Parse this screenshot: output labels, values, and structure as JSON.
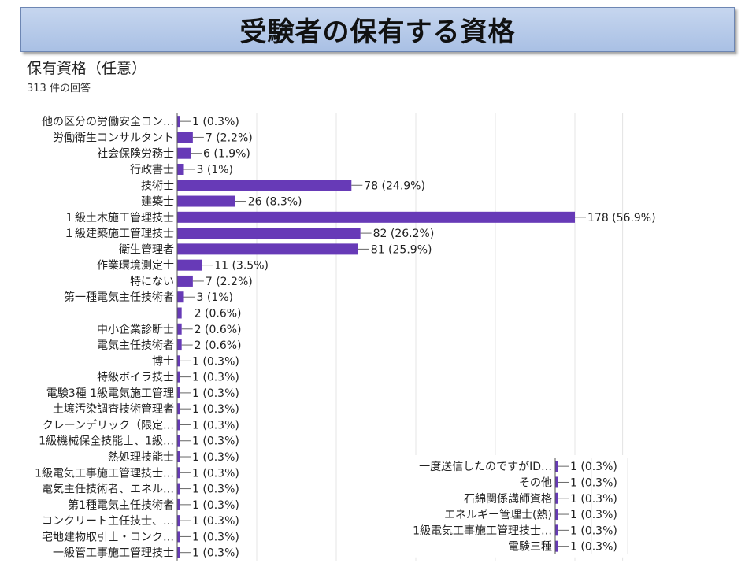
{
  "slide": {
    "title": "受験者の保有する資格"
  },
  "chart_data": {
    "type": "bar",
    "orientation": "horizontal",
    "title": "保有資格（任意）",
    "subtitle": "313 件の回答",
    "bar_color": "#673ab7",
    "grid": true,
    "series": [
      {
        "categories": [
          "他の区分の労働安全コン…",
          "労働衛生コンサルタント",
          "社会保険労務士",
          "行政書士",
          "技術士",
          "建築士",
          "１級土木施工管理技士",
          "１級建築施工管理技士",
          "衛生管理者",
          "作業環境測定士",
          "特にない",
          "第一種電気主任技術者",
          "",
          "中小企業診断士",
          "電気主任技術者",
          "博士",
          "特級ボイラ技士",
          "電験3種 1級電気施工管理",
          "土壌汚染調査技術管理者",
          "クレーンデリック（限定…",
          "1級機械保全技能士、1級…",
          "熱処理技能士",
          "1級電気工事施工管理技士…",
          "電気主任技術者、エネル…",
          "第1種電気主任技術者",
          "コンクリート主任技士、…",
          "宅地建物取引士・コンク…",
          "一級管工事施工管理技士"
        ],
        "values": [
          1,
          7,
          6,
          3,
          78,
          26,
          178,
          82,
          81,
          11,
          7,
          3,
          2,
          2,
          2,
          1,
          1,
          1,
          1,
          1,
          1,
          1,
          1,
          1,
          1,
          1,
          1,
          1
        ],
        "labels": [
          "1 (0.3%)",
          "7 (2.2%)",
          "6 (1.9%)",
          "3 (1%)",
          "78 (24.9%)",
          "26 (8.3%)",
          "178 (56.9%)",
          "82 (26.2%)",
          "81 (25.9%)",
          "11 (3.5%)",
          "7 (2.2%)",
          "3 (1%)",
          "2 (0.6%)",
          "2 (0.6%)",
          "2 (0.6%)",
          "1 (0.3%)",
          "1 (0.3%)",
          "1 (0.3%)",
          "1 (0.3%)",
          "1 (0.3%)",
          "1 (0.3%)",
          "1 (0.3%)",
          "1 (0.3%)",
          "1 (0.3%)",
          "1 (0.3%)",
          "1 (0.3%)",
          "1 (0.3%)",
          "1 (0.3%)"
        ]
      },
      {
        "categories": [
          "一度送信したのですがID…",
          "その他",
          "石綿関係講師資格",
          "エネルギー管理士(熱)",
          "1級電気工事施工管理技士…",
          "電験三種"
        ],
        "values": [
          1,
          1,
          1,
          1,
          1,
          1
        ],
        "labels": [
          "1 (0.3%)",
          "1 (0.3%)",
          "1 (0.3%)",
          "1 (0.3%)",
          "1 (0.3%)",
          "1 (0.3%)"
        ]
      }
    ]
  }
}
